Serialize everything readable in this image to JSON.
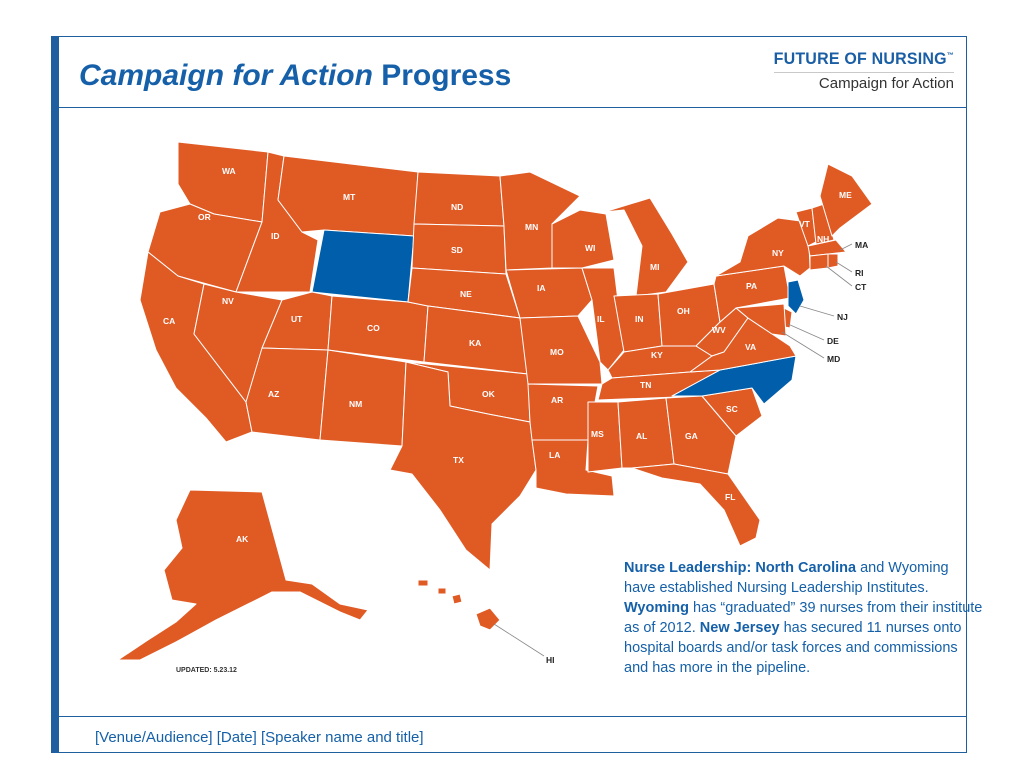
{
  "title": {
    "italic": "Campaign for Action",
    "rest": " Progress"
  },
  "logo": {
    "line1": "FUTURE OF NURSING",
    "tm": "™",
    "line2": "Campaign for Action"
  },
  "footer": "[Venue/Audience] [Date] [Speaker name and title]",
  "updated": "UPDATED: 5.23.12",
  "colors": {
    "default_state": "#e05a24",
    "highlight_state": "#005eaa",
    "accent": "#1f5fa0",
    "text_blue": "#1560a8"
  },
  "highlighted_states": [
    "WY",
    "NC",
    "NJ"
  ],
  "labels": {
    "WA": "WA",
    "OR": "OR",
    "CA": "CA",
    "ID": "ID",
    "NV": "NV",
    "MT": "MT",
    "UT": "UT",
    "AZ": "AZ",
    "CO": "CO",
    "NM": "NM",
    "ND": "ND",
    "SD": "SD",
    "NE": "NE",
    "KA": "KA",
    "OK": "OK",
    "TX": "TX",
    "MN": "MN",
    "IA": "IA",
    "MO": "MO",
    "AR": "AR",
    "LA": "LA",
    "WI": "WI",
    "IL": "IL",
    "MS": "MS",
    "MI": "MI",
    "IN": "IN",
    "KY": "KY",
    "TN": "TN",
    "AL": "AL",
    "OH": "OH",
    "GA": "GA",
    "FL": "FL",
    "SC": "SC",
    "WV": "WV",
    "VA": "VA",
    "PA": "PA",
    "NY": "NY",
    "VT": "VT",
    "NH": "NH",
    "ME": "ME",
    "AK": "AK",
    "MA": "MA",
    "RI": "RI",
    "CT": "CT",
    "NJ": "NJ",
    "DE": "DE",
    "MD": "MD",
    "HI": "HI"
  },
  "note": {
    "p1_bold": "Nurse Leadership: North Carolina",
    "p2": " and Wyoming have established Nursing Leadership Institutes. ",
    "p3_bold": "Wyoming",
    "p4": " has “graduated” 39 nurses from their institute as of 2012. ",
    "p5_bold": "New Jersey",
    "p6": " has secured 11 nurses onto hospital boards and/or task forces and commissions and has more in the pipeline."
  }
}
